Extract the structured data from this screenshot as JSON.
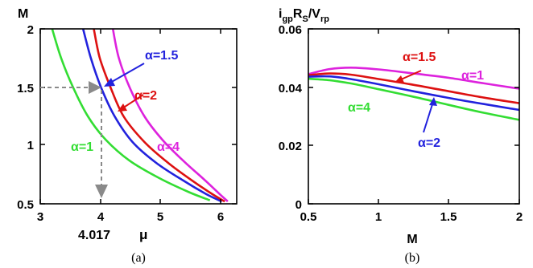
{
  "chart_data": [
    {
      "type": "line",
      "panel": "a",
      "caption": "(a)",
      "ylabel": "M",
      "xlabel": "μ",
      "xlim": [
        3,
        6.3
      ],
      "ylim": [
        0.5,
        2
      ],
      "x_ticks": [
        "3",
        "4",
        "5",
        "6"
      ],
      "y_ticks": [
        "0.5",
        "1",
        "1.5",
        "2"
      ],
      "marker_x_label": "4.017",
      "marker_point": [
        4.017,
        1.5
      ],
      "series": [
        {
          "name": "α=1",
          "color": "#33dd33",
          "x": [
            3.2,
            3.35,
            3.55,
            3.8,
            4.1,
            4.5,
            5.0,
            5.5,
            5.85
          ],
          "y": [
            2.0,
            1.75,
            1.5,
            1.25,
            1.05,
            0.87,
            0.72,
            0.6,
            0.53
          ]
        },
        {
          "name": "α=1.5",
          "color": "#2222dd",
          "x": [
            3.72,
            3.85,
            4.02,
            4.25,
            4.55,
            4.95,
            5.4,
            5.8,
            6.05
          ],
          "y": [
            2.0,
            1.75,
            1.5,
            1.25,
            1.03,
            0.85,
            0.7,
            0.58,
            0.52
          ]
        },
        {
          "name": "α=2",
          "color": "#dd1111",
          "x": [
            3.9,
            4.0,
            4.18,
            4.4,
            4.75,
            5.15,
            5.55,
            5.9,
            6.1
          ],
          "y": [
            2.0,
            1.75,
            1.5,
            1.25,
            1.03,
            0.85,
            0.7,
            0.58,
            0.52
          ]
        },
        {
          "name": "α=4",
          "color": "#dd22dd",
          "x": [
            4.22,
            4.32,
            4.5,
            4.75,
            5.05,
            5.4,
            5.75,
            6.0,
            6.15
          ],
          "y": [
            2.0,
            1.75,
            1.5,
            1.25,
            1.05,
            0.87,
            0.71,
            0.59,
            0.52
          ]
        }
      ]
    },
    {
      "type": "line",
      "panel": "b",
      "caption": "(b)",
      "ylabel": "i_gpR_S/V_rp",
      "ylabel_parts": [
        "i",
        "gp",
        "R",
        "S",
        "/V",
        "rp"
      ],
      "xlabel": "M",
      "xlim": [
        0.5,
        2
      ],
      "ylim": [
        0,
        0.06
      ],
      "x_ticks": [
        "0.5",
        "1",
        "1.5",
        "2"
      ],
      "y_ticks": [
        "0",
        "0.02",
        "0.04",
        "0.06"
      ],
      "series": [
        {
          "name": "α=1",
          "color": "#dd22dd",
          "x": [
            0.5,
            0.65,
            0.8,
            1.0,
            1.25,
            1.5,
            1.75,
            2.0
          ],
          "y": [
            0.0445,
            0.0462,
            0.0467,
            0.0461,
            0.0447,
            0.0432,
            0.0413,
            0.0395
          ]
        },
        {
          "name": "α=1.5",
          "color": "#dd1111",
          "x": [
            0.5,
            0.65,
            0.8,
            1.0,
            1.25,
            1.5,
            1.75,
            2.0
          ],
          "y": [
            0.0441,
            0.0447,
            0.0443,
            0.0428,
            0.0408,
            0.0386,
            0.0364,
            0.0345
          ]
        },
        {
          "name": "α=2",
          "color": "#2222dd",
          "x": [
            0.5,
            0.65,
            0.8,
            1.0,
            1.25,
            1.5,
            1.75,
            2.0
          ],
          "y": [
            0.0436,
            0.0437,
            0.0428,
            0.041,
            0.0386,
            0.0363,
            0.0342,
            0.0322
          ]
        },
        {
          "name": "α=4",
          "color": "#33dd33",
          "x": [
            0.5,
            0.65,
            0.8,
            1.0,
            1.25,
            1.5,
            1.75,
            2.0
          ],
          "y": [
            0.0429,
            0.0424,
            0.0413,
            0.0393,
            0.0367,
            0.0339,
            0.0312,
            0.0288
          ]
        }
      ]
    }
  ]
}
